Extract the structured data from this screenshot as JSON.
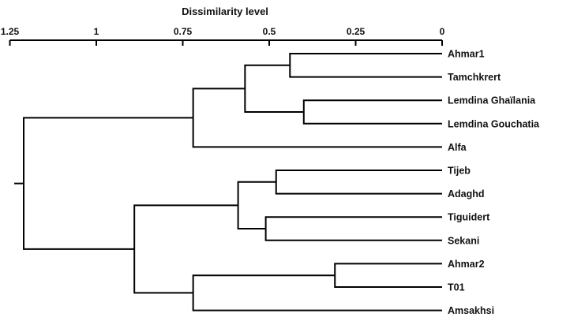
{
  "chart_data": {
    "type": "dendrogram",
    "axis_title": "Dissimilarity level",
    "axis_orientation": "top, reversed (0 at right)",
    "xlim": [
      0,
      1.25
    ],
    "ticks": [
      {
        "value": 1.25,
        "label": "1.25"
      },
      {
        "value": 1,
        "label": "1"
      },
      {
        "value": 0.75,
        "label": "0.75"
      },
      {
        "value": 0.5,
        "label": "0.5"
      },
      {
        "value": 0.25,
        "label": "0.25"
      },
      {
        "value": 0,
        "label": "0"
      }
    ],
    "leaves": [
      "Ahmar1",
      "Tamchkrert",
      "Lemdina Ghaïlania",
      "Lemdina Gouchatia",
      "Alfa",
      "Tijeb",
      "Adaghd",
      "Tiguidert",
      "Sekani",
      "Ahmar2",
      "T01",
      "Amsakhsi"
    ],
    "merges": [
      {
        "id": "m1",
        "left": "Ahmar1",
        "right": "Tamchkrert",
        "height": 0.44
      },
      {
        "id": "m2",
        "left": "Lemdina Ghaïlania",
        "right": "Lemdina Gouchatia",
        "height": 0.4
      },
      {
        "id": "m3",
        "left": "m1",
        "right": "m2",
        "height": 0.57
      },
      {
        "id": "m4",
        "left": "m3",
        "right": "Alfa",
        "height": 0.72
      },
      {
        "id": "m5",
        "left": "Tijeb",
        "right": "Adaghd",
        "height": 0.48
      },
      {
        "id": "m6",
        "left": "Tiguidert",
        "right": "Sekani",
        "height": 0.51
      },
      {
        "id": "m7",
        "left": "m5",
        "right": "m6",
        "height": 0.59
      },
      {
        "id": "m8",
        "left": "Ahmar2",
        "right": "T01",
        "height": 0.31
      },
      {
        "id": "m9",
        "left": "m8",
        "right": "Amsakhsi",
        "height": 0.72
      },
      {
        "id": "m10",
        "left": "m7",
        "right": "m9",
        "height": 0.89
      },
      {
        "id": "m11",
        "left": "m4",
        "right": "m10",
        "height": 1.21
      }
    ]
  }
}
